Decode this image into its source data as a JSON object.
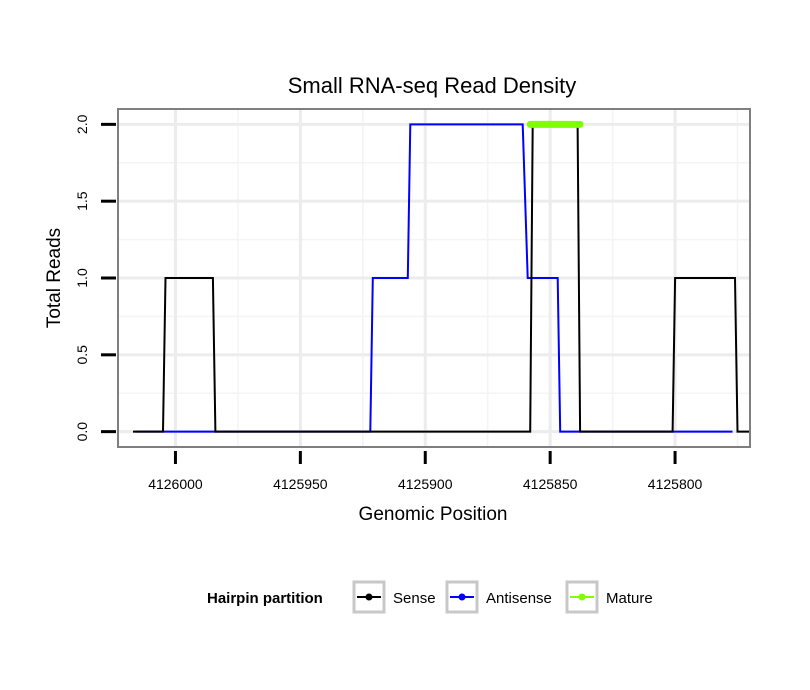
{
  "chart_data": {
    "type": "line",
    "title": "Small RNA-seq Read Density",
    "xlabel": "Genomic Position",
    "ylabel": "Total Reads",
    "x_reversed": true,
    "xlim": [
      4126023,
      4125770
    ],
    "ylim": [
      -0.1,
      2.1
    ],
    "x_ticks": [
      4126000,
      4125950,
      4125900,
      4125850,
      4125800
    ],
    "x_tick_labels": [
      "4126000",
      "4125950",
      "4125900",
      "4125850",
      "4125800"
    ],
    "y_ticks": [
      0.0,
      0.5,
      1.0,
      1.5,
      2.0
    ],
    "y_tick_labels": [
      "0.0",
      "0.5",
      "1.0",
      "1.5",
      "2.0"
    ],
    "grid": true,
    "legend": {
      "title": "Hairpin partition",
      "position": "bottom",
      "entries": [
        "Sense",
        "Antisense",
        "Mature"
      ]
    },
    "series": [
      {
        "name": "Antisense",
        "color": "#0000ff",
        "points": [
          [
            4126016,
            0
          ],
          [
            4125922,
            0
          ],
          [
            4125921,
            1
          ],
          [
            4125907,
            1
          ],
          [
            4125906,
            2
          ],
          [
            4125861,
            2
          ],
          [
            4125859,
            1
          ],
          [
            4125847,
            1
          ],
          [
            4125846,
            0
          ],
          [
            4125777,
            0
          ]
        ]
      },
      {
        "name": "Sense",
        "color": "#000000",
        "points": [
          [
            4126017,
            0
          ],
          [
            4126005,
            0
          ],
          [
            4126004,
            1
          ],
          [
            4125985,
            1
          ],
          [
            4125984,
            0
          ],
          [
            4125858,
            0
          ],
          [
            4125857,
            2
          ],
          [
            4125839,
            2
          ],
          [
            4125838,
            0
          ],
          [
            4125801,
            0
          ],
          [
            4125800,
            1
          ],
          [
            4125776,
            1
          ],
          [
            4125775,
            0
          ],
          [
            4125770,
            0
          ]
        ]
      },
      {
        "name": "Mature",
        "color": "#7fff00",
        "points": [
          [
            4125858,
            2
          ],
          [
            4125838,
            2
          ]
        ]
      }
    ]
  }
}
